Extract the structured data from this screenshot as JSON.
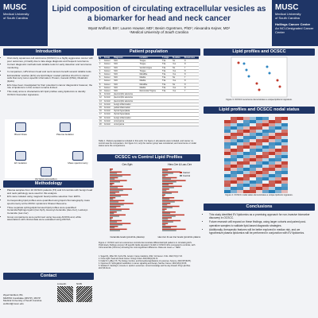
{
  "header": {
    "logo_left": [
      "MUSC",
      "Medical University",
      "of South Carolina"
    ],
    "title": "Lipid composition of circulating extracellular vesicles as a biomarker for head and neck cancer",
    "authors": "Wyatt Wofford, BS¹; Lauren Howser, MD¹; Besim Ogretmen, PhD¹; Alexandra Kejner, MD¹",
    "affiliation": "¹Medical University of South Carolina",
    "logo_right": [
      "MUSC",
      "Medical University",
      "of South Carolina",
      "Hollings Cancer Center",
      "An NCI-Designated Cancer Center"
    ]
  },
  "introduction": {
    "heading": "Introduction",
    "bullets": [
      "Oral cavity squamous cell carcinoma (OCSCC) is a highly aggressive cancer with poor outcomes, primarily due to late-stage diagnosis and frequent recurrence.",
      "Current diagnostic methods lack reliable tools for early detection and recurrence monitoring.",
      "In comparison, HPV-driven head and neck cancers benefit several reliable tools.",
      "Extracellular vesicles (EVs) are lipid bilayer coated particles shed from cancer cells that carry tumor-specific information: Protein, Genetic (RNA), Metabolic (lipids)",
      "EVs have been investigated for their potential in cancer diagnostics however, the role of lipidomics in this context remains limited.",
      "This study aims to characterize EV lipid profiles using lipidomics to identify OCSCC biomarker signatures."
    ]
  },
  "workflow": {
    "steps": [
      "Blood Draw",
      "Plasma Isolation",
      "EV isolation",
      "EV lipid composition analysis",
      "Mass spectrometry"
    ]
  },
  "methodology": {
    "heading": "Methodology",
    "bullets": [
      "Plasma samples from 10 OCSCC patients (T4) and 10 controls with benign head and neck pathology were used for this analysis.",
      "EVs were isolated using magnetic bead positive selection from EDTA.",
      "Corresponding lipid profiles were quantified using liquid chromatography mass spectrometry at the MUSC Lipidomics Shared Resource.",
      "Three separate sphingolipid-focused lipid profiles were quantified: Ceramide/Sphingomyelin (Cer-Sph), Hexosyl-Ceramide (Hex-Cer), Lactosyl-Ceramide (Lac-Cer)",
      "Group comparisons were performed using two-way ANOVA and, while associations with clinical data were evaluated using ANOVA."
    ]
  },
  "contact": {
    "heading": "Contact",
    "lines": [
      "Wyatt Wofford, BS",
      "MD/PhD Candidate (MSTP), MSTP",
      "Medical University of South Carolina",
      "wofford@musc.edu"
    ],
    "qr_labels": [
      "LinkedIn",
      "NCBI"
    ]
  },
  "patients": {
    "heading": "Patient population",
    "columns": [
      "N",
      "Group",
      "Diagnosis",
      "Location",
      "T-stage",
      "N-status",
      "Recurrence"
    ],
    "rows": [
      [
        "1",
        "Cancer",
        "SCC",
        "Tongue",
        "T4a",
        "No",
        "N"
      ],
      [
        "2",
        "Cancer",
        "SCC",
        "Tongue",
        "T4a",
        "Yes",
        "N"
      ],
      [
        "3",
        "Cancer",
        "SCC",
        "Ventral tongue",
        "T4a",
        "No",
        "Y"
      ],
      [
        "4",
        "Cancer",
        "SCC",
        "Tongue",
        "T4a",
        "Yes",
        "N"
      ],
      [
        "5",
        "Cancer",
        "SCC",
        "Mandible",
        "T4a",
        "Yes",
        "N"
      ],
      [
        "6",
        "Cancer",
        "SCC",
        "Maxilla",
        "T4a",
        "No",
        "Y"
      ],
      [
        "7",
        "Cancer",
        "SCC",
        "Maxilla",
        "T4a",
        "Yes",
        "N"
      ],
      [
        "8",
        "Cancer",
        "SCC",
        "Mandible",
        "T4a",
        "No",
        "N"
      ],
      [
        "9",
        "Cancer",
        "SCC",
        "Maxilla",
        "T4a",
        "Yes",
        "N"
      ],
      [
        "10",
        "Cancer",
        "SCC",
        "Retromolar Trigone",
        "T4a",
        "Yes",
        "Y"
      ],
      [
        "11",
        "Control",
        "pleomorphic adenoma",
        "",
        "",
        "",
        ""
      ],
      [
        "12",
        "Control",
        "pleomorphic adenoma",
        "",
        "",
        "",
        ""
      ],
      [
        "13",
        "Control",
        "pleomorphic adenoma",
        "",
        "",
        "",
        ""
      ],
      [
        "14",
        "Control",
        "benign inflammation",
        "",
        "",
        "",
        ""
      ],
      [
        "15",
        "Control",
        "partial inflammation",
        "",
        "",
        "",
        ""
      ],
      [
        "16",
        "Control",
        "thyroid hyperplasia",
        "",
        "",
        "",
        ""
      ],
      [
        "17",
        "Control",
        "thyroid hyperplasia",
        "",
        "",
        "",
        ""
      ],
      [
        "18",
        "Control",
        "benign inflammation",
        "",
        "",
        "",
        ""
      ],
      [
        "19",
        "Control",
        "oncocytoma",
        "",
        "",
        "",
        ""
      ],
      [
        "20",
        "Control",
        "oncocytoma",
        "",
        "",
        "",
        ""
      ]
    ],
    "caption": "Table 1. Patient populations included in this work. For figure 2, all patients were included, and cancer vs. control was the comparison. For figure 3-4, only the cancer group was considered, and recurrence or nodal status were the comparisons."
  },
  "profiles": {
    "heading": "OCSCC vs Control Lipid Profiles",
    "panels": [
      "Cer-Sph",
      "Hex-Cer & Lac-Cer"
    ],
    "legend": [
      "Cancer",
      "Control"
    ],
    "x_labels": [
      "Ceramide levels (pmol/mL plasma)",
      "Hex-Cer & Lac-Cer levels (pmol/mL plasma)"
    ],
    "caption": "Figure 2. OCSCC and non-cancerous controls demonstrate differential lipid patterns in circulating EVs. Preliminary findings uncover 18 specific lipids elevated 1.9-fold in OCSCC EVs compared to controls, with C24-ceramide (C24-Cer) showing the most significant difference. Data are mean +/- SEM."
  },
  "references": {
    "heading": "References",
    "items": [
      "1. Siegel RL, Miller KD, Fuchs HE, Jemal A. Cancer statistics, 2022. CA Cancer J Clin. 2022;72(1):7-33.",
      "2. Chow LQM. Head and Neck Cancer. N Engl J Med. 2020;382(1):60-72.",
      "3. Kalluri R, LeBleu VS. The biology, function, and biomedical applications of exosomes. Science. 2020;367(6478).",
      "4. Ogretmen B. Sphingolipid metabolism in cancer signalling and therapy. Nat Rev Cancer. 2018;18(1):33-50.",
      "5. Skotland T, Sandvig K, Llorente A. Lipids in exosomes: current knowledge and the way forward. Prog Lipid Res. 2017;66:30-41."
    ]
  },
  "pca": {
    "heading": "Lipid profiles and OCSCC",
    "caption": "Figure 3. OCSCC recurrence demonstrates a unique lipidomic signature."
  },
  "nodal": {
    "heading": "Lipid profiles and OCSCC nodal status",
    "caption": "Figure 4. OCSCC nodal status demonstrates a unique lipidomic signature."
  },
  "conclusions": {
    "heading": "Conclusions",
    "bullets": [
      "This study identified EV lipidomics as a promising approach for non-invasive biomarker discovery in OCSCC.",
      "Future research will expand on these findings, using larger cohorts and paired post-operative samples to validate lipid-based diagnostic strategies.",
      "Additionally, therapeutic features will be better explored in median risk, and we hypothesize plasma lipidomics will be performed in conjunction with EV lipidomics."
    ]
  }
}
